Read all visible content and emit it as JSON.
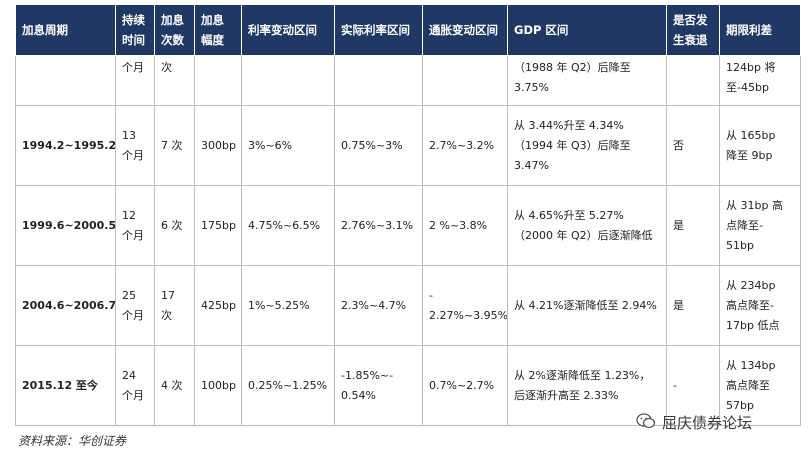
{
  "headers": [
    [
      "加息周期"
    ],
    [
      "持续",
      "时间"
    ],
    [
      "加息",
      "次数"
    ],
    [
      "加息",
      "幅度"
    ],
    [
      "利率变动区间"
    ],
    [
      "实际利率区间"
    ],
    [
      "通胀变动区间"
    ],
    [
      "GDP 区间"
    ],
    [
      "是否发",
      "生衰退"
    ],
    [
      "期限利差"
    ]
  ],
  "rows": [
    {
      "partial": true,
      "cells": [
        [],
        [
          "个月"
        ],
        [
          "次"
        ],
        [],
        [],
        [],
        [],
        [
          "（1988 年 Q2）后降至",
          "3.75%"
        ],
        [],
        [
          "124bp 将",
          "至-45bp"
        ]
      ]
    },
    {
      "cells": [
        [
          "1994.2~1995.2"
        ],
        [
          "13",
          "个月"
        ],
        [
          "7 次"
        ],
        [
          "300bp"
        ],
        [
          "3%~6%"
        ],
        [
          "0.75%~3%"
        ],
        [
          "2.7%~3.2%"
        ],
        [
          "从 3.44%升至 4.34%",
          "（1994 年 Q3）后降至",
          "3.47%"
        ],
        [
          "否"
        ],
        [
          "从 165bp",
          "降至 9bp"
        ]
      ]
    },
    {
      "cells": [
        [
          "1999.6~2000.5"
        ],
        [
          "12",
          "个月"
        ],
        [
          "6 次"
        ],
        [
          "175bp"
        ],
        [
          "4.75%~6.5%"
        ],
        [
          "2.76%~3.1%"
        ],
        [
          "2 %~3.8%"
        ],
        [
          "从 4.65%升至 5.27%",
          "（2000 年 Q2）后逐渐降低"
        ],
        [
          "是"
        ],
        [
          "从 31bp 高",
          "点降至-",
          "51bp"
        ]
      ]
    },
    {
      "cells": [
        [
          "2004.6~2006.7"
        ],
        [
          "25",
          "个月"
        ],
        [
          "17",
          "次"
        ],
        [
          "425bp"
        ],
        [
          "1%~5.25%"
        ],
        [
          "2.3%~4.7%"
        ],
        [
          "-",
          "2.27%~3.95%"
        ],
        [
          "从 4.21%逐渐降低至 2.94%"
        ],
        [
          "是"
        ],
        [
          "从 234bp",
          "高点降至-",
          "17bp 低点"
        ]
      ]
    },
    {
      "cells": [
        [
          "2015.12 至今"
        ],
        [
          "24",
          "个月"
        ],
        [
          "4 次"
        ],
        [
          "100bp"
        ],
        [
          "0.25%~1.25%"
        ],
        [
          "-1.85%~-",
          "0.54%"
        ],
        [
          "0.7%~2.7%"
        ],
        [
          "从 2%逐渐降低至 1.23%，",
          "后逐渐升高至 2.33%"
        ],
        [
          "-"
        ],
        [
          "从 134bp",
          "高点降至",
          "57bp"
        ]
      ]
    }
  ],
  "source": "资料来源：华创证券",
  "watermark": {
    "icon": "wechat-icon",
    "text": "屈庆债券论坛"
  }
}
